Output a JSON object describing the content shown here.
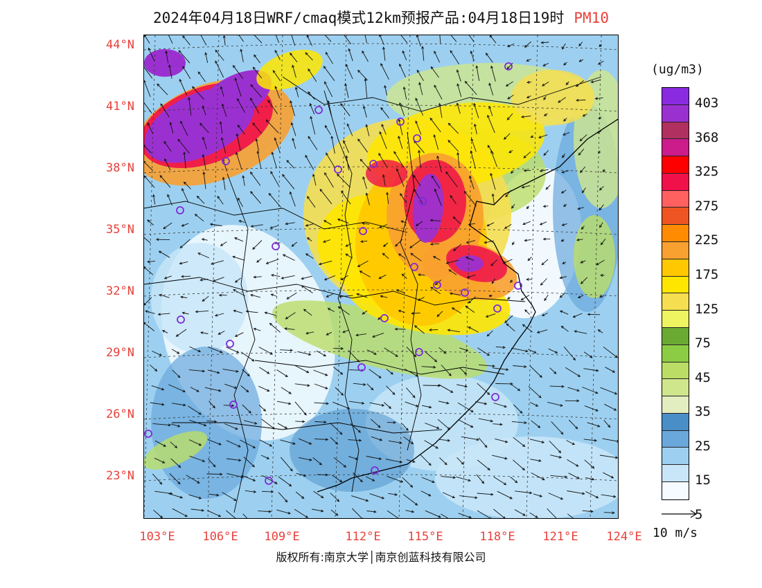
{
  "title": {
    "text": "2024年04月18日WRF/cmaq模式12km预报产品:04月18日19时",
    "species": "PM10"
  },
  "map": {
    "lat_labels": [
      "44°N",
      "41°N",
      "38°N",
      "35°N",
      "32°N",
      "29°N",
      "26°N",
      "23°N"
    ],
    "lon_labels": [
      "103°E",
      "106°E",
      "109°E",
      "112°E",
      "115°E",
      "118°E",
      "121°E",
      "124°E"
    ]
  },
  "colorbar": {
    "units": "(ug/m3)",
    "labels": [
      "403",
      "368",
      "325",
      "275",
      "225",
      "175",
      "125",
      "75",
      "45",
      "35",
      "25",
      "15",
      "5"
    ],
    "colors": [
      "#8a2be2",
      "#9b30d0",
      "#b03060",
      "#cc1b8a",
      "#ff0000",
      "#f0104a",
      "#ff6060",
      "#ee5522",
      "#ff8c00",
      "#f8a030",
      "#ffc800",
      "#ffe600",
      "#f5de50",
      "#eef560",
      "#6aaa33",
      "#8ccc44",
      "#bbdd66",
      "#cfe68c",
      "#e2edc0",
      "#4a8ec8",
      "#6aa8dc",
      "#9dd0f0",
      "#c8e6f8",
      "#f5fbff"
    ]
  },
  "wind_reference": {
    "label": "10 m/s"
  },
  "footer": {
    "copyright": "版权所有:南京大学│南京创蓝科技有限公司"
  }
}
